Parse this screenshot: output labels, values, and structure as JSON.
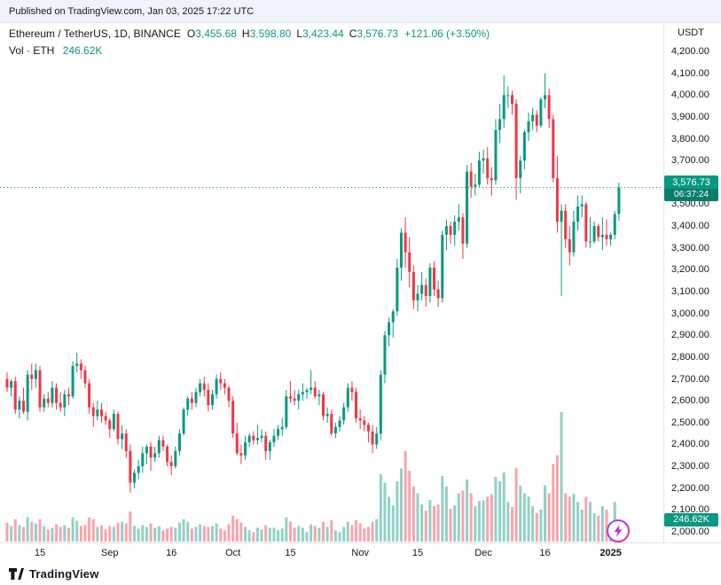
{
  "banner": {
    "text": "Published on TradingView.com, Jan 03, 2025 17:22 UTC"
  },
  "legend": {
    "symbol": "Ethereum / TetherUS, 1D, BINANCE",
    "ohlc": [
      {
        "label": "O",
        "value": "3,455.68"
      },
      {
        "label": "H",
        "value": "3,598.80"
      },
      {
        "label": "L",
        "value": "3,423.44"
      },
      {
        "label": "C",
        "value": "3,576.73"
      }
    ],
    "change": "+121.06 (+3.50%)",
    "vol_label": "Vol · ETH",
    "vol_value": "246.62K"
  },
  "price_axis": {
    "currency": "USDT",
    "labels": [
      "4,200.00",
      "4,100.00",
      "4,000.00",
      "3,900.00",
      "3,800.00",
      "3,700.00",
      "3,600.00",
      "3,500.00",
      "3,400.00",
      "3,300.00",
      "3,200.00",
      "3,100.00",
      "3,000.00",
      "2,900.00",
      "2,800.00",
      "2,700.00",
      "2,600.00",
      "2,500.00",
      "2,400.00",
      "2,300.00",
      "2,200.00",
      "2,100.00",
      "2,000.00"
    ],
    "badge_price": "3,576.73",
    "badge_countdown": "06:37:24",
    "volume_badge": "246.62K"
  },
  "footer": {
    "brand": "TradingView"
  },
  "colors": {
    "up": "#089981",
    "down": "#F23645",
    "vol_up": "rgba(8,153,129,0.45)",
    "vol_down": "rgba(242,54,69,0.45)",
    "axis_line": "#E0E3EB",
    "text": "#131722",
    "badge_bg": "#089981",
    "countdown_bg": "#077E6B"
  },
  "chart_data": {
    "type": "candlestick",
    "title": "Ethereum / TetherUS, 1D, BINANCE",
    "ylabel": "USDT",
    "ylim": [
      2000,
      4200
    ],
    "grid": false,
    "last_price": 3576.73,
    "last_volume_k": 246.62,
    "volume_unit": "K",
    "x_ticks": [
      {
        "label": "15",
        "index": 8
      },
      {
        "label": "Sep",
        "index": 25,
        "major": true
      },
      {
        "label": "16",
        "index": 40
      },
      {
        "label": "Oct",
        "index": 55,
        "major": true
      },
      {
        "label": "15",
        "index": 69
      },
      {
        "label": "Nov",
        "index": 86,
        "major": true
      },
      {
        "label": "15",
        "index": 100
      },
      {
        "label": "Dec",
        "index": 116,
        "major": true
      },
      {
        "label": "16",
        "index": 131
      },
      {
        "label": "2025",
        "index": 147,
        "major": true,
        "year": true
      }
    ],
    "candles_format": [
      "open",
      "high",
      "low",
      "close",
      "volume_k"
    ],
    "candles": [
      [
        2700,
        2730,
        2640,
        2660,
        220
      ],
      [
        2660,
        2700,
        2620,
        2690,
        180
      ],
      [
        2690,
        2710,
        2540,
        2560,
        260
      ],
      [
        2560,
        2620,
        2520,
        2600,
        190
      ],
      [
        2600,
        2660,
        2540,
        2550,
        170
      ],
      [
        2550,
        2740,
        2510,
        2720,
        280
      ],
      [
        2720,
        2770,
        2650,
        2700,
        230
      ],
      [
        2700,
        2770,
        2660,
        2740,
        210
      ],
      [
        2740,
        2760,
        2550,
        2570,
        260
      ],
      [
        2570,
        2630,
        2550,
        2610,
        180
      ],
      [
        2610,
        2640,
        2570,
        2590,
        140
      ],
      [
        2590,
        2690,
        2570,
        2660,
        160
      ],
      [
        2660,
        2680,
        2560,
        2590,
        200
      ],
      [
        2590,
        2640,
        2550,
        2570,
        170
      ],
      [
        2570,
        2650,
        2530,
        2630,
        190
      ],
      [
        2630,
        2660,
        2580,
        2620,
        160
      ],
      [
        2620,
        2780,
        2610,
        2760,
        280
      ],
      [
        2760,
        2820,
        2730,
        2770,
        240
      ],
      [
        2770,
        2790,
        2700,
        2740,
        180
      ],
      [
        2740,
        2760,
        2660,
        2680,
        190
      ],
      [
        2680,
        2700,
        2540,
        2570,
        280
      ],
      [
        2570,
        2590,
        2480,
        2530,
        260
      ],
      [
        2530,
        2600,
        2510,
        2560,
        170
      ],
      [
        2560,
        2590,
        2500,
        2530,
        190
      ],
      [
        2530,
        2550,
        2490,
        2510,
        140
      ],
      [
        2510,
        2520,
        2430,
        2470,
        180
      ],
      [
        2470,
        2560,
        2460,
        2540,
        170
      ],
      [
        2540,
        2550,
        2400,
        2425,
        220
      ],
      [
        2425,
        2490,
        2380,
        2450,
        230
      ],
      [
        2450,
        2470,
        2340,
        2370,
        210
      ],
      [
        2370,
        2400,
        2180,
        2225,
        350
      ],
      [
        2225,
        2285,
        2200,
        2270,
        180
      ],
      [
        2270,
        2330,
        2240,
        2300,
        150
      ],
      [
        2300,
        2390,
        2270,
        2360,
        190
      ],
      [
        2360,
        2400,
        2310,
        2390,
        170
      ],
      [
        2390,
        2410,
        2280,
        2340,
        210
      ],
      [
        2340,
        2390,
        2320,
        2360,
        160
      ],
      [
        2360,
        2440,
        2340,
        2420,
        180
      ],
      [
        2420,
        2440,
        2370,
        2390,
        130
      ],
      [
        2390,
        2400,
        2300,
        2320,
        150
      ],
      [
        2320,
        2350,
        2260,
        2300,
        170
      ],
      [
        2300,
        2390,
        2290,
        2370,
        160
      ],
      [
        2370,
        2470,
        2350,
        2450,
        220
      ],
      [
        2450,
        2570,
        2440,
        2560,
        260
      ],
      [
        2560,
        2620,
        2530,
        2610,
        230
      ],
      [
        2610,
        2640,
        2560,
        2590,
        150
      ],
      [
        2590,
        2660,
        2570,
        2640,
        170
      ],
      [
        2640,
        2700,
        2620,
        2680,
        200
      ],
      [
        2680,
        2710,
        2620,
        2650,
        180
      ],
      [
        2650,
        2680,
        2550,
        2580,
        170
      ],
      [
        2580,
        2650,
        2560,
        2630,
        180
      ],
      [
        2630,
        2720,
        2610,
        2700,
        210
      ],
      [
        2700,
        2730,
        2650,
        2680,
        150
      ],
      [
        2680,
        2700,
        2630,
        2660,
        130
      ],
      [
        2660,
        2670,
        2570,
        2600,
        200
      ],
      [
        2600,
        2620,
        2430,
        2450,
        300
      ],
      [
        2450,
        2500,
        2350,
        2360,
        260
      ],
      [
        2360,
        2400,
        2310,
        2350,
        220
      ],
      [
        2350,
        2440,
        2330,
        2410,
        170
      ],
      [
        2410,
        2450,
        2390,
        2440,
        130
      ],
      [
        2440,
        2460,
        2400,
        2420,
        110
      ],
      [
        2420,
        2490,
        2400,
        2430,
        160
      ],
      [
        2430,
        2470,
        2410,
        2440,
        140
      ],
      [
        2440,
        2460,
        2330,
        2370,
        190
      ],
      [
        2370,
        2420,
        2330,
        2410,
        160
      ],
      [
        2410,
        2470,
        2390,
        2440,
        160
      ],
      [
        2440,
        2490,
        2420,
        2470,
        130
      ],
      [
        2470,
        2520,
        2440,
        2480,
        150
      ],
      [
        2480,
        2650,
        2470,
        2620,
        280
      ],
      [
        2620,
        2690,
        2590,
        2610,
        230
      ],
      [
        2610,
        2650,
        2580,
        2600,
        160
      ],
      [
        2600,
        2650,
        2560,
        2630,
        180
      ],
      [
        2630,
        2680,
        2600,
        2640,
        160
      ],
      [
        2640,
        2660,
        2610,
        2650,
        110
      ],
      [
        2650,
        2740,
        2630,
        2660,
        200
      ],
      [
        2660,
        2690,
        2610,
        2620,
        180
      ],
      [
        2620,
        2650,
        2580,
        2630,
        160
      ],
      [
        2630,
        2640,
        2510,
        2530,
        230
      ],
      [
        2530,
        2570,
        2500,
        2540,
        170
      ],
      [
        2540,
        2560,
        2440,
        2450,
        250
      ],
      [
        2450,
        2500,
        2430,
        2480,
        130
      ],
      [
        2480,
        2530,
        2460,
        2510,
        110
      ],
      [
        2510,
        2590,
        2490,
        2570,
        170
      ],
      [
        2570,
        2680,
        2550,
        2660,
        230
      ],
      [
        2660,
        2690,
        2600,
        2640,
        190
      ],
      [
        2640,
        2660,
        2500,
        2520,
        250
      ],
      [
        2520,
        2560,
        2470,
        2510,
        210
      ],
      [
        2510,
        2530,
        2460,
        2490,
        150
      ],
      [
        2490,
        2500,
        2410,
        2460,
        170
      ],
      [
        2460,
        2490,
        2360,
        2400,
        230
      ],
      [
        2400,
        2480,
        2380,
        2450,
        260
      ],
      [
        2450,
        2740,
        2420,
        2720,
        780
      ],
      [
        2720,
        2920,
        2680,
        2900,
        680
      ],
      [
        2900,
        2980,
        2850,
        2960,
        520
      ],
      [
        2960,
        3020,
        2890,
        3010,
        420
      ],
      [
        3010,
        3250,
        2990,
        3210,
        700
      ],
      [
        3210,
        3390,
        3150,
        3370,
        850
      ],
      [
        3370,
        3440,
        3210,
        3280,
        1050
      ],
      [
        3280,
        3350,
        3120,
        3190,
        820
      ],
      [
        3190,
        3220,
        3020,
        3060,
        640
      ],
      [
        3060,
        3130,
        3010,
        3090,
        560
      ],
      [
        3090,
        3190,
        3060,
        3130,
        430
      ],
      [
        3130,
        3160,
        3030,
        3080,
        360
      ],
      [
        3080,
        3230,
        3050,
        3210,
        480
      ],
      [
        3210,
        3240,
        3080,
        3110,
        410
      ],
      [
        3110,
        3150,
        3030,
        3070,
        430
      ],
      [
        3070,
        3380,
        3050,
        3360,
        760
      ],
      [
        3360,
        3430,
        3290,
        3400,
        640
      ],
      [
        3400,
        3420,
        3320,
        3360,
        380
      ],
      [
        3360,
        3450,
        3310,
        3420,
        420
      ],
      [
        3420,
        3500,
        3380,
        3440,
        560
      ],
      [
        3440,
        3460,
        3250,
        3320,
        590
      ],
      [
        3320,
        3680,
        3300,
        3650,
        720
      ],
      [
        3650,
        3690,
        3530,
        3580,
        560
      ],
      [
        3580,
        3640,
        3540,
        3590,
        410
      ],
      [
        3590,
        3740,
        3580,
        3700,
        470
      ],
      [
        3700,
        3750,
        3640,
        3710,
        480
      ],
      [
        3710,
        3760,
        3590,
        3620,
        520
      ],
      [
        3620,
        3670,
        3540,
        3610,
        550
      ],
      [
        3610,
        3890,
        3590,
        3840,
        750
      ],
      [
        3840,
        3960,
        3780,
        3890,
        700
      ],
      [
        3890,
        4090,
        3850,
        4000,
        800
      ],
      [
        4000,
        4040,
        3940,
        4000,
        460
      ],
      [
        4000,
        4020,
        3910,
        3960,
        400
      ],
      [
        3960,
        3980,
        3520,
        3620,
        850
      ],
      [
        3620,
        3720,
        3550,
        3700,
        650
      ],
      [
        3700,
        3840,
        3660,
        3830,
        560
      ],
      [
        3830,
        3920,
        3790,
        3880,
        520
      ],
      [
        3880,
        3940,
        3840,
        3910,
        410
      ],
      [
        3910,
        3930,
        3830,
        3860,
        330
      ],
      [
        3860,
        3990,
        3850,
        3980,
        370
      ],
      [
        3980,
        4100,
        3940,
        4000,
        650
      ],
      [
        4000,
        4030,
        3850,
        3890,
        560
      ],
      [
        3890,
        3910,
        3600,
        3620,
        900
      ],
      [
        3620,
        3720,
        3370,
        3420,
        1000
      ],
      [
        3420,
        3500,
        3080,
        3470,
        1500
      ],
      [
        3470,
        3500,
        3300,
        3340,
        560
      ],
      [
        3340,
        3400,
        3220,
        3280,
        520
      ],
      [
        3280,
        3470,
        3260,
        3420,
        550
      ],
      [
        3420,
        3540,
        3380,
        3490,
        460
      ],
      [
        3490,
        3540,
        3440,
        3500,
        370
      ],
      [
        3500,
        3510,
        3300,
        3330,
        520
      ],
      [
        3330,
        3440,
        3300,
        3330,
        460
      ],
      [
        3330,
        3420,
        3320,
        3400,
        330
      ],
      [
        3400,
        3410,
        3330,
        3350,
        300
      ],
      [
        3350,
        3440,
        3290,
        3360,
        410
      ],
      [
        3360,
        3430,
        3310,
        3340,
        370
      ],
      [
        3340,
        3370,
        3310,
        3360,
        220
      ],
      [
        3360,
        3470,
        3340,
        3455,
        460
      ],
      [
        3455.68,
        3598.8,
        3423.44,
        3576.73,
        246.62
      ]
    ]
  }
}
